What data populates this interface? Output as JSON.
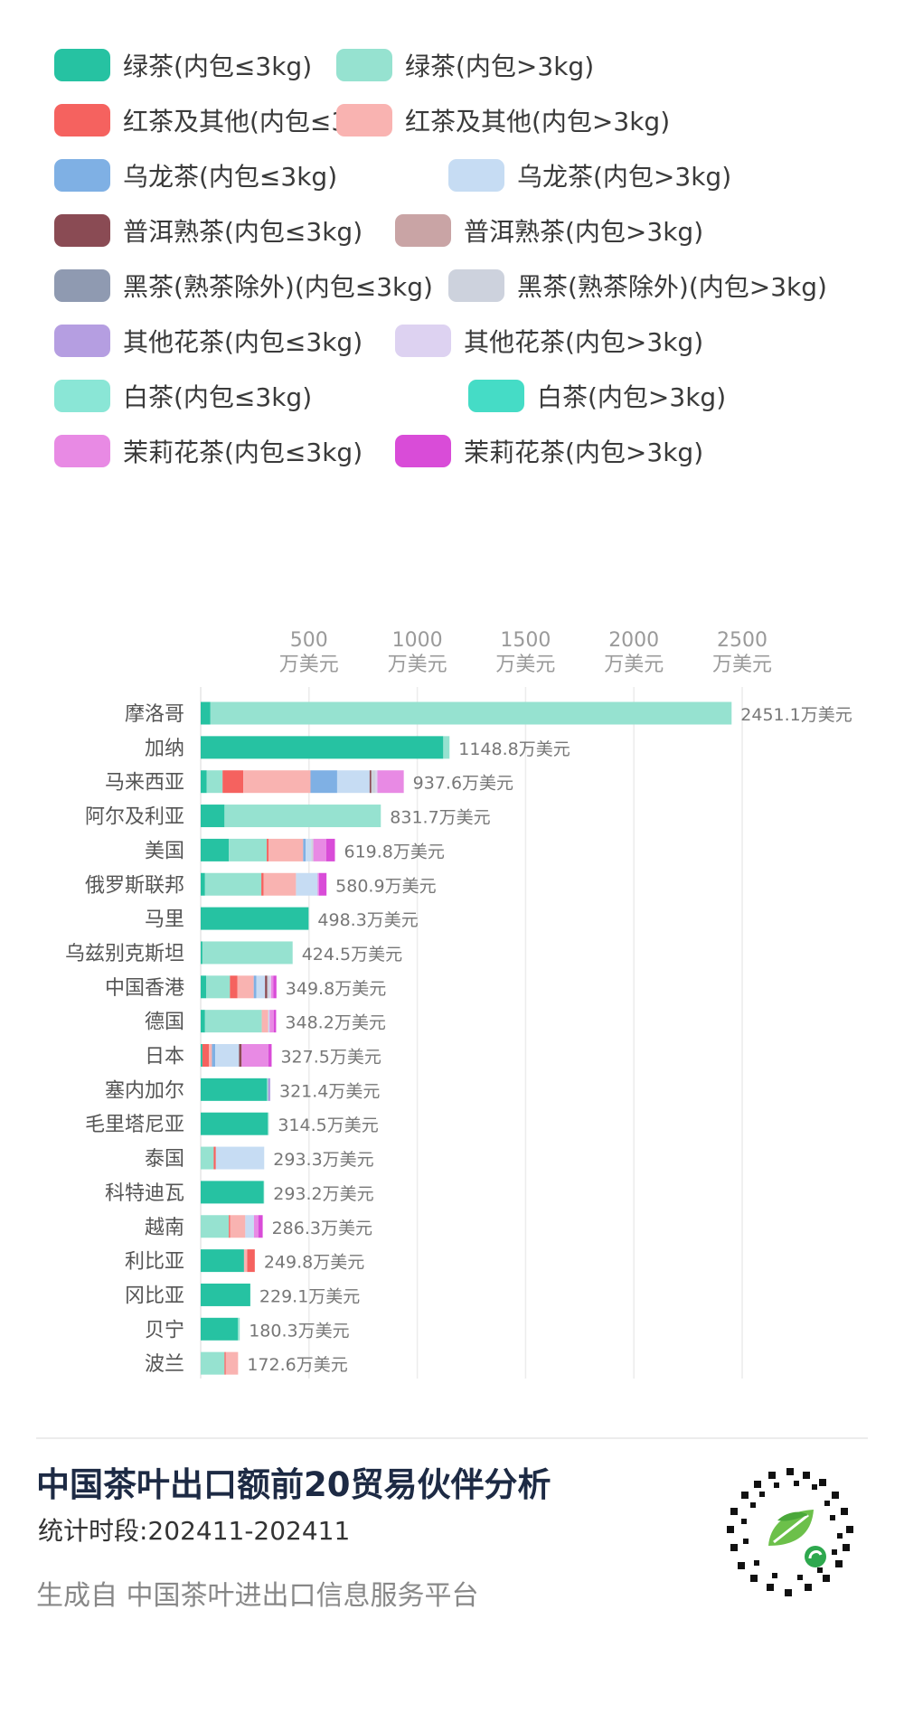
{
  "legend": [
    {
      "label": "绿茶(内包≤3kg)",
      "color": "#26c2a2"
    },
    {
      "label": "绿茶(内包>3kg)",
      "color": "#96e2d0"
    },
    {
      "label": "红茶及其他(内包≤3kg)",
      "color": "#f5625f"
    },
    {
      "label": "红茶及其他(内包>3kg)",
      "color": "#f9b3b1"
    },
    {
      "label": "乌龙茶(内包≤3kg)",
      "color": "#7fb0e4"
    },
    {
      "label": "乌龙茶(内包>3kg)",
      "color": "#c6dcf3"
    },
    {
      "label": "普洱熟茶(内包≤3kg)",
      "color": "#8a4b54"
    },
    {
      "label": "普洱熟茶(内包>3kg)",
      "color": "#c9a4a5"
    },
    {
      "label": "黑茶(熟茶除外)(内包≤3kg)",
      "color": "#8f9ab1"
    },
    {
      "label": "黑茶(熟茶除外)(内包>3kg)",
      "color": "#cdd2dd"
    },
    {
      "label": "其他花茶(内包≤3kg)",
      "color": "#b59ee1"
    },
    {
      "label": "其他花茶(内包>3kg)",
      "color": "#ddd2f1"
    },
    {
      "label": "白茶(内包≤3kg)",
      "color": "#8ae6d6"
    },
    {
      "label": "白茶(内包>3kg)",
      "color": "#45dcc6"
    },
    {
      "label": "茉莉花茶(内包≤3kg)",
      "color": "#e88ae4"
    },
    {
      "label": "茉莉花茶(内包>3kg)",
      "color": "#d94cd8"
    }
  ],
  "chart_data": {
    "type": "bar",
    "orientation": "horizontal",
    "stacked": true,
    "xlim": [
      0,
      2500
    ],
    "x_ticks": [
      {
        "value": 500,
        "line1": "500",
        "line2": "万美元"
      },
      {
        "value": 1000,
        "line1": "1000",
        "line2": "万美元"
      },
      {
        "value": 1500,
        "line1": "1500",
        "line2": "万美元"
      },
      {
        "value": 2000,
        "line1": "2000",
        "line2": "万美元"
      },
      {
        "value": 2500,
        "line1": "2500",
        "line2": "万美元"
      }
    ],
    "grid": true,
    "tick_position": "top",
    "series_names": [
      "绿茶(内包≤3kg)",
      "绿茶(内包>3kg)",
      "红茶及其他(内包≤3kg)",
      "红茶及其他(内包>3kg)",
      "乌龙茶(内包≤3kg)",
      "乌龙茶(内包>3kg)",
      "普洱熟茶(内包≤3kg)",
      "普洱熟茶(内包>3kg)",
      "黑茶(熟茶除外)(内包≤3kg)",
      "黑茶(熟茶除外)(内包>3kg)",
      "其他花茶(内包≤3kg)",
      "其他花茶(内包>3kg)",
      "白茶(内包≤3kg)",
      "白茶(内包>3kg)",
      "茉莉花茶(内包≤3kg)",
      "茉莉花茶(内包>3kg)"
    ],
    "categories": [
      {
        "name": "摩洛哥",
        "total": "2451.1万美元",
        "segments": [
          [
            0,
            45
          ],
          [
            1,
            2406.1
          ]
        ]
      },
      {
        "name": "加纳",
        "total": "1148.8万美元",
        "segments": [
          [
            0,
            1120
          ],
          [
            1,
            28.8
          ]
        ]
      },
      {
        "name": "马来西亚",
        "total": "937.6万美元",
        "segments": [
          [
            0,
            28
          ],
          [
            1,
            73
          ],
          [
            2,
            96
          ],
          [
            3,
            310
          ],
          [
            4,
            123
          ],
          [
            5,
            150
          ],
          [
            6,
            8
          ],
          [
            9,
            20
          ],
          [
            11,
            8
          ],
          [
            14,
            121.6
          ]
        ]
      },
      {
        "name": "阿尔及利亚",
        "total": "831.7万美元",
        "segments": [
          [
            0,
            110
          ],
          [
            1,
            721.7
          ]
        ]
      },
      {
        "name": "美国",
        "total": "619.8万美元",
        "segments": [
          [
            0,
            130
          ],
          [
            1,
            175
          ],
          [
            2,
            8
          ],
          [
            3,
            160
          ],
          [
            4,
            12
          ],
          [
            5,
            25
          ],
          [
            9,
            10
          ],
          [
            14,
            60
          ],
          [
            15,
            39.8
          ]
        ]
      },
      {
        "name": "俄罗斯联邦",
        "total": "580.9万美元",
        "segments": [
          [
            0,
            20
          ],
          [
            1,
            260
          ],
          [
            2,
            10
          ],
          [
            3,
            150
          ],
          [
            5,
            100
          ],
          [
            14,
            6
          ],
          [
            15,
            34.9
          ]
        ]
      },
      {
        "name": "马里",
        "total": "498.3万美元",
        "segments": [
          [
            0,
            498.3
          ]
        ]
      },
      {
        "name": "乌兹别克斯坦",
        "total": "424.5万美元",
        "segments": [
          [
            0,
            8
          ],
          [
            1,
            416.5
          ]
        ]
      },
      {
        "name": "中国香港",
        "total": "349.8万美元",
        "segments": [
          [
            0,
            25
          ],
          [
            1,
            110
          ],
          [
            2,
            35
          ],
          [
            3,
            75
          ],
          [
            4,
            12
          ],
          [
            5,
            40
          ],
          [
            6,
            10
          ],
          [
            9,
            10
          ],
          [
            11,
            8
          ],
          [
            14,
            10
          ],
          [
            15,
            14.8
          ]
        ]
      },
      {
        "name": "德国",
        "total": "348.2万美元",
        "segments": [
          [
            0,
            20
          ],
          [
            1,
            262
          ],
          [
            3,
            30
          ],
          [
            5,
            6
          ],
          [
            14,
            20
          ],
          [
            15,
            10.2
          ]
        ]
      },
      {
        "name": "日本",
        "total": "327.5万美元",
        "segments": [
          [
            0,
            8
          ],
          [
            2,
            30
          ],
          [
            3,
            14
          ],
          [
            4,
            15
          ],
          [
            5,
            110
          ],
          [
            6,
            12
          ],
          [
            14,
            123.5
          ],
          [
            15,
            15
          ]
        ]
      },
      {
        "name": "塞内加尔",
        "total": "321.4万美元",
        "segments": [
          [
            0,
            306
          ],
          [
            1,
            5
          ],
          [
            10,
            10.4
          ]
        ]
      },
      {
        "name": "毛里塔尼亚",
        "total": "314.5万美元",
        "segments": [
          [
            0,
            310
          ],
          [
            1,
            4.5
          ]
        ]
      },
      {
        "name": "泰国",
        "total": "293.3万美元",
        "segments": [
          [
            1,
            60
          ],
          [
            2,
            10
          ],
          [
            5,
            223.3
          ]
        ]
      },
      {
        "name": "科特迪瓦",
        "total": "293.2万美元",
        "segments": [
          [
            0,
            290
          ],
          [
            1,
            3.2
          ]
        ]
      },
      {
        "name": "越南",
        "total": "286.3万美元",
        "segments": [
          [
            1,
            130
          ],
          [
            2,
            6
          ],
          [
            3,
            70
          ],
          [
            5,
            40
          ],
          [
            14,
            20
          ],
          [
            15,
            20.3
          ]
        ]
      },
      {
        "name": "利比亚",
        "total": "249.8万美元",
        "segments": [
          [
            0,
            200
          ],
          [
            3,
            15
          ],
          [
            2,
            34.8
          ]
        ]
      },
      {
        "name": "冈比亚",
        "total": "229.1万美元",
        "segments": [
          [
            0,
            229.1
          ]
        ]
      },
      {
        "name": "贝宁",
        "total": "180.3万美元",
        "segments": [
          [
            0,
            172
          ],
          [
            1,
            8.3
          ]
        ]
      },
      {
        "name": "波兰",
        "total": "172.6万美元",
        "segments": [
          [
            1,
            110
          ],
          [
            2,
            6
          ],
          [
            3,
            56.6
          ]
        ]
      }
    ]
  },
  "footer": {
    "title": "中国茶叶出口额前20贸易伙伴分析",
    "period": "统计时段:202411-202411",
    "source": "生成自 中国茶叶进出口信息服务平台",
    "qr_icon": "mini-program-qr-icon"
  }
}
